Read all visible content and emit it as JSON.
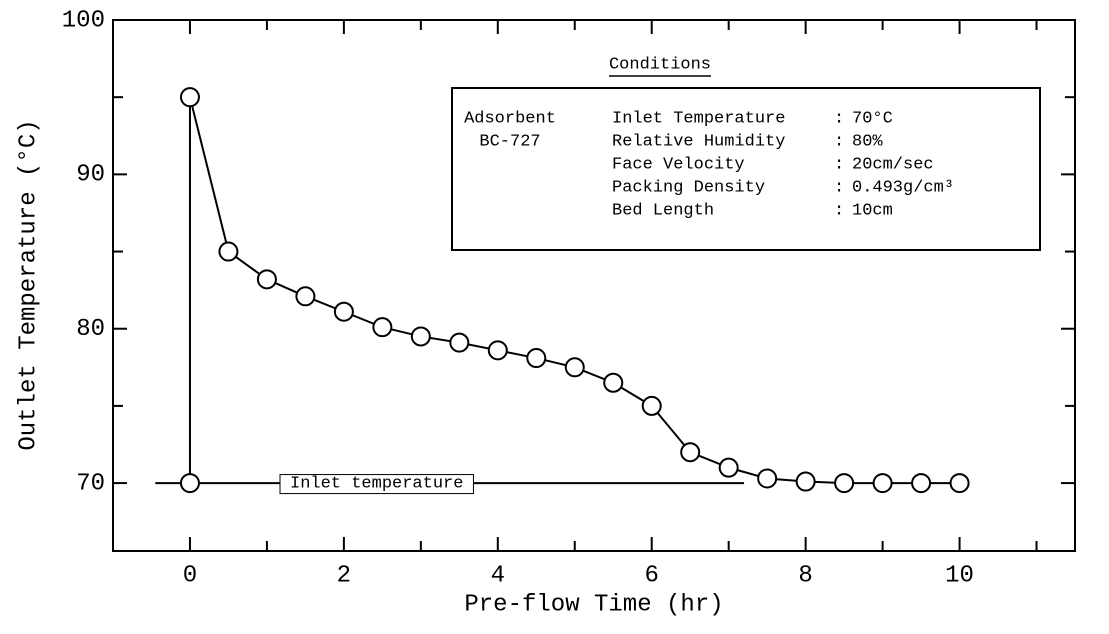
{
  "chart_data": {
    "type": "line",
    "x_label": "Pre-flow Time (hr)",
    "y_label": "Outlet Temperature (°C)",
    "xlim": [
      -1,
      11.5
    ],
    "ylim": [
      65.6,
      100
    ],
    "xticks": [
      0,
      2,
      4,
      6,
      8,
      10
    ],
    "yticks": [
      70,
      80,
      90,
      100
    ],
    "xminor_ticks": [
      1,
      3,
      5,
      7,
      9,
      11
    ],
    "yminor_ticks": [
      75,
      85,
      95
    ],
    "color": "#000000",
    "x": [
      0,
      0.5,
      1,
      1.5,
      2,
      2.5,
      3,
      3.5,
      4,
      4.5,
      5,
      5.5,
      6,
      6.5,
      7,
      7.5,
      8,
      8.5,
      9,
      9.5,
      10
    ],
    "values": [
      95,
      85,
      83.2,
      82.1,
      81.1,
      80.1,
      79.5,
      79.1,
      78.6,
      78.1,
      77.5,
      76.5,
      75,
      72,
      71,
      70.3,
      70.1,
      70,
      70,
      70,
      70
    ],
    "inlet": {
      "text": "Inlet temperature",
      "y": 70,
      "x": [
        -0.45,
        7.2
      ],
      "marker_x": 0
    },
    "conditions": {
      "title": "Conditions",
      "adsorbent": [
        "Adsorbent",
        "BC-727"
      ],
      "separator": ":",
      "rows": [
        [
          "Inlet Temperature",
          "70°C"
        ],
        [
          "Relative Humidity",
          "80%"
        ],
        [
          "Face Velocity",
          "20cm/sec"
        ],
        [
          "Packing Density",
          "0.493g/cm³"
        ],
        [
          "Bed Length",
          "10cm"
        ]
      ]
    }
  }
}
